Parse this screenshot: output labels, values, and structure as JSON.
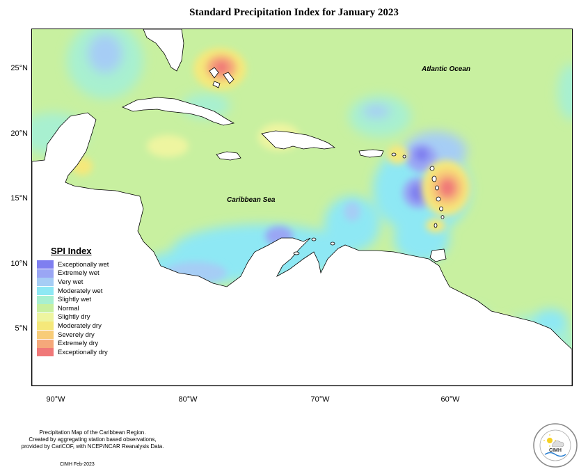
{
  "title": "Standard Precipitation Index for January 2023",
  "map": {
    "lat_labels": [
      "25°N",
      "20°N",
      "15°N",
      "10°N",
      "5°N"
    ],
    "lon_labels": [
      "90°W",
      "80°W",
      "70°W",
      "60°W"
    ],
    "region_labels": {
      "atlantic": "Atlantic Ocean",
      "caribbean": "Caribbean Sea"
    },
    "colors": {
      "normal": "#c8f0a0",
      "land": "#ffffff",
      "coast": "#000000"
    }
  },
  "legend": {
    "title": "SPI Index",
    "items": [
      {
        "label": "Exceptionally wet",
        "color": "#7f7ff0"
      },
      {
        "label": "Extremely wet",
        "color": "#9aa6f4"
      },
      {
        "label": "Very wet",
        "color": "#a6cdf5"
      },
      {
        "label": "Moderately wet",
        "color": "#8ee8f4"
      },
      {
        "label": "Slightly wet",
        "color": "#a8f0d0"
      },
      {
        "label": "Normal",
        "color": "#c8f0a0"
      },
      {
        "label": "Slightly dry",
        "color": "#eef5a0"
      },
      {
        "label": "Moderately dry",
        "color": "#f5e87a"
      },
      {
        "label": "Severely dry",
        "color": "#f8cc78"
      },
      {
        "label": "Extremely dry",
        "color": "#f5a87a"
      },
      {
        "label": "Exceptionally dry",
        "color": "#f07878"
      }
    ]
  },
  "footer": {
    "note_lines": [
      "Precipitation Map of the Caribbean Region.",
      "Created by aggregating station based observations,",
      "provided by CariCOF, with NCEP/NCAR Reanalysis Data."
    ],
    "credit": "CIMH Feb-2023"
  },
  "logo": {
    "text": "CIMH",
    "icon": "cimh-logo-icon"
  }
}
